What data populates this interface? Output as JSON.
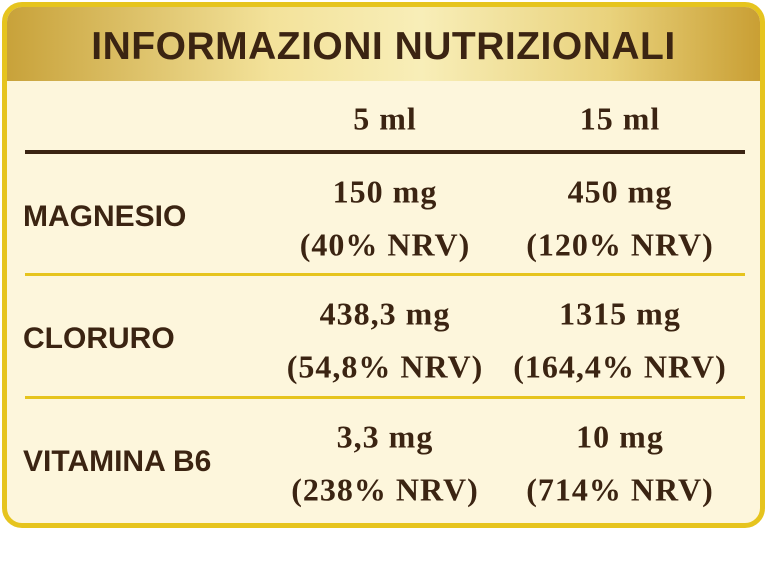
{
  "header": {
    "title": "INFORMAZIONI NUTRIZIONALI"
  },
  "table": {
    "columns": [
      "5 ml",
      "15 ml"
    ],
    "rows": [
      {
        "label": "MAGNESIO",
        "cells": [
          [
            "150 mg",
            "(40% NRV)"
          ],
          [
            "450 mg",
            "(120% NRV)"
          ]
        ]
      },
      {
        "label": "CLORURO",
        "cells": [
          [
            "438,3 mg",
            "(54,8% NRV)"
          ],
          [
            "1315 mg",
            "(164,4% NRV)"
          ]
        ]
      },
      {
        "label": "VITAMINA B6",
        "cells": [
          [
            "3,3 mg",
            "(238% NRV)"
          ],
          [
            "10 mg",
            "(714% NRV)"
          ]
        ]
      }
    ]
  }
}
